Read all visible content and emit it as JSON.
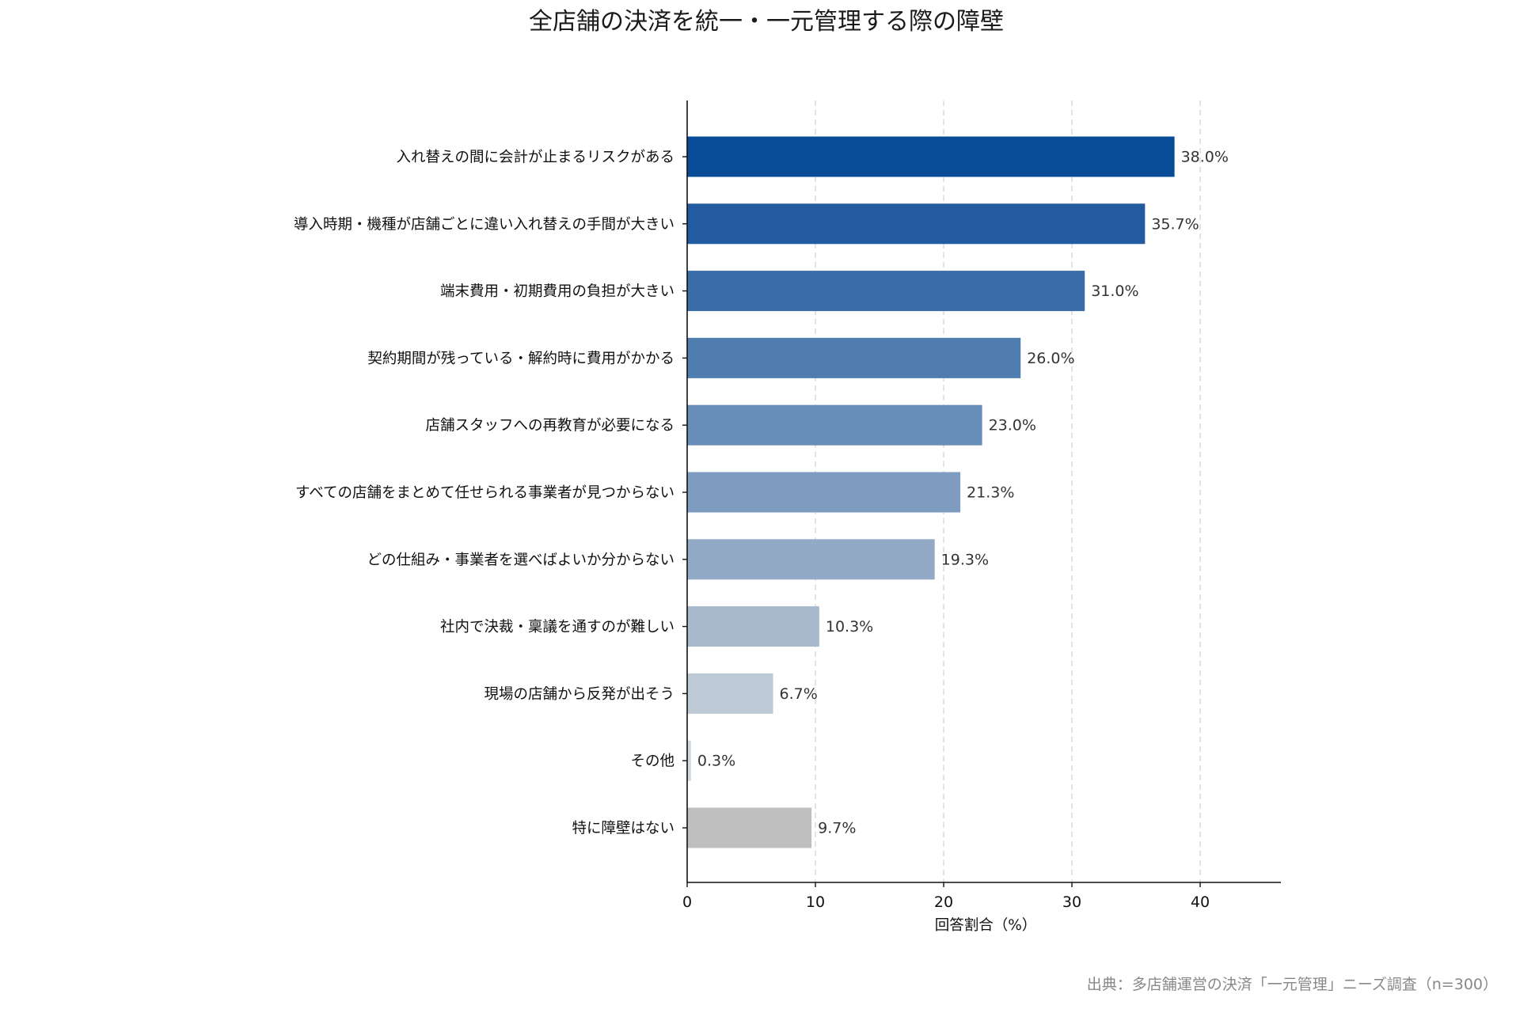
{
  "chart_data": {
    "type": "bar",
    "orientation": "horizontal",
    "title": "全店舗の決済を統一・一元管理する際の障壁",
    "xlabel": "回答割合（%）",
    "ylabel": "",
    "xlim": [
      0,
      46
    ],
    "xticks": [
      0,
      10,
      20,
      30,
      40
    ],
    "grid": "vertical dashed",
    "categories": [
      "入れ替えの間に会計が止まるリスクがある",
      "導入時期・機種が店舗ごとに違い入れ替えの手間が大きい",
      "端末費用・初期費用の負担が大きい",
      "契約期間が残っている・解約時に費用がかかる",
      "店舗スタッフへの再教育が必要になる",
      "すべての店舗をまとめて任せられる事業者が見つからない",
      "どの仕組み・事業者を選べばよいか分からない",
      "社内で決裁・稟議を通すのが難しい",
      "現場の店舗から反発が出そう",
      "その他",
      "特に障壁はない"
    ],
    "values": [
      38.0,
      35.7,
      31.0,
      26.0,
      23.0,
      21.3,
      19.3,
      10.3,
      6.7,
      0.3,
      9.7
    ],
    "value_labels": [
      "38.0%",
      "35.7%",
      "31.0%",
      "26.0%",
      "23.0%",
      "21.3%",
      "19.3%",
      "10.3%",
      "6.7%",
      "0.3%",
      "9.7%"
    ],
    "colors": [
      "#084c97",
      "#225b9f",
      "#3a6ca8",
      "#4f7db0",
      "#678db8",
      "#7e9cbf",
      "#92aac6",
      "#a7b9cd",
      "#bdc9d4",
      "#d3d9df",
      "#bfbfbf"
    ],
    "source": "出典：多店舗運営の決済「一元管理」ニーズ調査（n=300）"
  }
}
